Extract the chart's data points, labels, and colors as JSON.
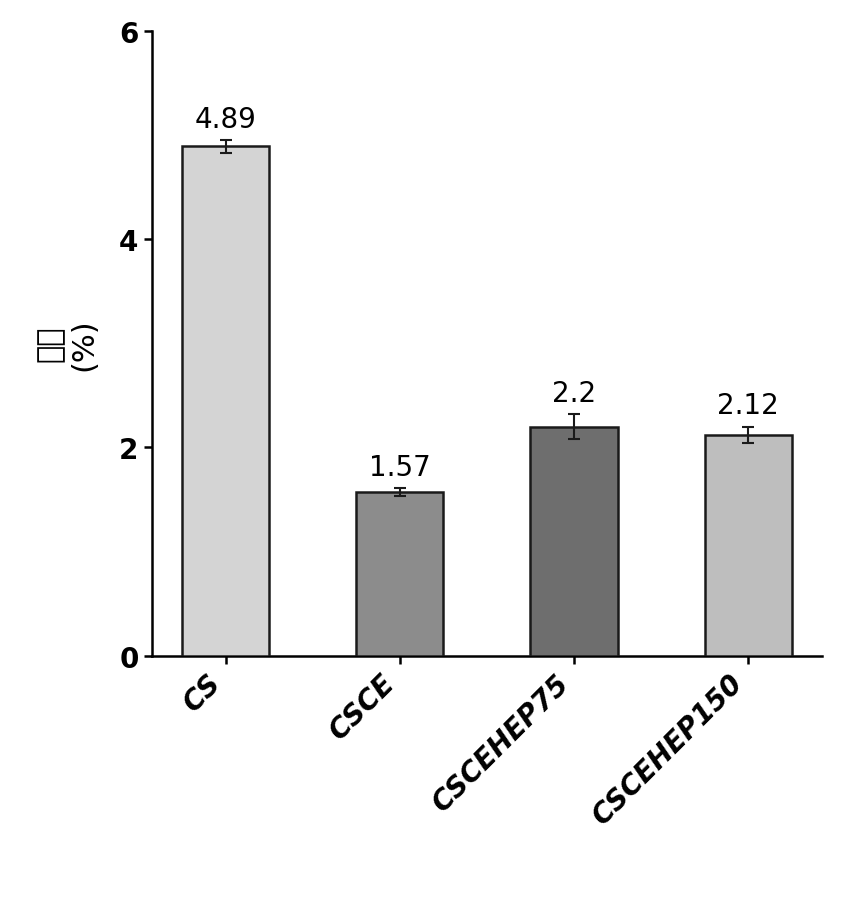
{
  "categories": [
    "CS",
    "CSCE",
    "CSCEHEP75",
    "CSCEHEP150"
  ],
  "values": [
    4.89,
    1.57,
    2.2,
    2.12
  ],
  "errors": [
    0.06,
    0.04,
    0.12,
    0.08
  ],
  "bar_colors": [
    "#d4d4d4",
    "#8c8c8c",
    "#6e6e6e",
    "#bebebe"
  ],
  "bar_edgecolors": [
    "#1a1a1a",
    "#1a1a1a",
    "#1a1a1a",
    "#1a1a1a"
  ],
  "ylabel_chinese": "应变",
  "ylabel_percent": "(%)",
  "ylim": [
    0,
    6
  ],
  "yticks": [
    0,
    2,
    4,
    6
  ],
  "value_labels": [
    "4.89",
    "1.57",
    "2.2",
    "2.12"
  ],
  "bar_width": 0.5,
  "label_fontsize": 22,
  "tick_fontsize": 20,
  "value_fontsize": 20,
  "xlabel_rotation": 45,
  "background_color": "#ffffff",
  "errorbar_color": "#1a1a1a",
  "errorbar_capsize": 4,
  "errorbar_linewidth": 1.5
}
